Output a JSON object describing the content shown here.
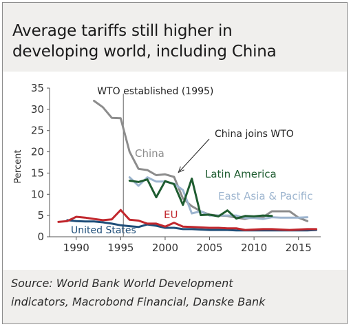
{
  "chart_data": {
    "type": "line",
    "title_lines": [
      "Average tariffs still higher in",
      "developing world, including China"
    ],
    "ylabel": "Percent",
    "xlim": [
      1987,
      2017.5
    ],
    "ylim": [
      0,
      35
    ],
    "x_ticks": [
      1990,
      1995,
      2000,
      2005,
      2010,
      2015
    ],
    "y_ticks": [
      0,
      5,
      10,
      15,
      20,
      25,
      30,
      35
    ],
    "grid": false,
    "series": [
      {
        "name": "China",
        "color": "#8c8c8c",
        "x": [
          1992,
          1993,
          1994,
          1995,
          1996,
          1997,
          1998,
          1999,
          2000,
          2001,
          2002,
          2003,
          2004,
          2005,
          2006,
          2007,
          2008,
          2009,
          2010,
          2011,
          2012,
          2013,
          2014,
          2015,
          2016
        ],
        "values": [
          32,
          30.5,
          28,
          27.9,
          20,
          16,
          15.7,
          14.5,
          14.7,
          14.1,
          9,
          7.2,
          6,
          5.2,
          5,
          4.9,
          4.5,
          4.2,
          4.7,
          4.6,
          6,
          6,
          6,
          4.5,
          3.7
        ]
      },
      {
        "name": "Latin America",
        "color": "#1e5c30",
        "x": [
          1996,
          1997,
          1998,
          1999,
          2000,
          2001,
          2002,
          2003,
          2004,
          2005,
          2006,
          2007,
          2008,
          2009,
          2010,
          2011,
          2012
        ],
        "values": [
          13.2,
          12.9,
          13.5,
          9.3,
          13.1,
          12.4,
          7.5,
          13.7,
          5.1,
          5.2,
          4.8,
          6.2,
          4.3,
          4.9,
          4.8,
          5,
          4.9
        ]
      },
      {
        "name": "East Asia & Pacific",
        "color": "#9db5cf",
        "x": [
          1996,
          1997,
          1998,
          1999,
          2000,
          2001,
          2002,
          2003,
          2004,
          2005,
          2006,
          2007,
          2008,
          2009,
          2010,
          2011,
          2012,
          2013,
          2014,
          2015,
          2016
        ],
        "values": [
          14,
          12,
          14,
          13,
          13,
          12.5,
          11,
          5.5,
          6,
          5,
          5,
          5,
          5,
          4.4,
          4.4,
          4.2,
          4.6,
          4.5,
          4.5,
          4.5,
          4.6
        ]
      },
      {
        "name": "EU",
        "color": "#c1272d",
        "x": [
          1988,
          1989,
          1990,
          1991,
          1992,
          1993,
          1994,
          1995,
          1996,
          1997,
          1998,
          1999,
          2000,
          2001,
          2002,
          2003,
          2004,
          2005,
          2006,
          2007,
          2008,
          2009,
          2010,
          2011,
          2012,
          2013,
          2014,
          2015,
          2016,
          2017
        ],
        "values": [
          3.5,
          3.7,
          4.7,
          4.5,
          4.2,
          3.9,
          4.1,
          6.3,
          4.0,
          3.8,
          3.1,
          3.1,
          2.4,
          3.3,
          2.4,
          2.3,
          2.2,
          2.1,
          2.1,
          2.0,
          2.0,
          1.6,
          1.7,
          1.8,
          1.8,
          1.7,
          1.6,
          1.7,
          1.8,
          1.8
        ]
      },
      {
        "name": "United States",
        "color": "#1f4e79",
        "x": [
          1989,
          1990,
          1991,
          1992,
          1993,
          1994,
          1995,
          1996,
          1997,
          1998,
          1999,
          2000,
          2001,
          2002,
          2003,
          2004,
          2005,
          2006,
          2007,
          2008,
          2009,
          2010,
          2011,
          2012,
          2013,
          2014,
          2015,
          2016,
          2017
        ],
        "values": [
          3.9,
          3.7,
          3.6,
          3.6,
          3.4,
          3.1,
          2.7,
          2.5,
          2.3,
          2.9,
          2.6,
          2.1,
          2.1,
          1.8,
          1.8,
          1.7,
          1.6,
          1.6,
          1.6,
          1.5,
          1.5,
          1.5,
          1.5,
          1.5,
          1.5,
          1.5,
          1.5,
          1.5,
          1.6
        ]
      }
    ],
    "annotations": {
      "wto": {
        "text": "WTO established (1995)",
        "x": 1995.3
      },
      "china_wto": {
        "text": "China joins WTO",
        "x": 2001.5,
        "y": 14.5
      }
    }
  },
  "source_lines": [
    "Source: World Bank World Development",
    "indicators, Macrobond Financial, Danske Bank"
  ]
}
